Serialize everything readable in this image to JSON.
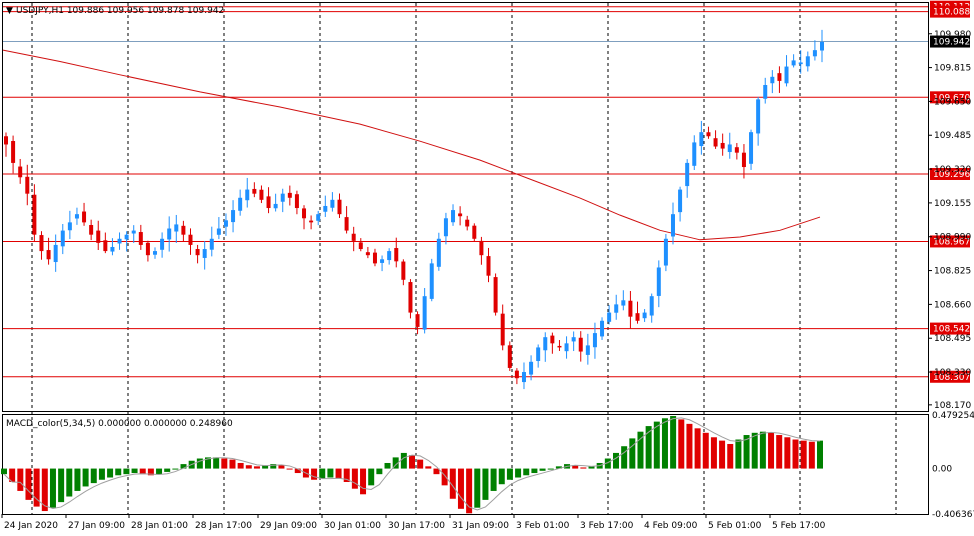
{
  "header": {
    "symbol_line": "USDJPY,H1  109.886 109.956 109.878 109.942"
  },
  "macd_header": {
    "text": "MACD_color(5,34,5) 0.000000 0.000000 0.248960"
  },
  "colors": {
    "bull": "#1e90ff",
    "bear": "#e00000",
    "ma": "#d01010",
    "level_line": "#e00000",
    "level_tag": "#e00000",
    "bid_tag": "#000000",
    "hist_up": "#008000",
    "hist_down": "#e00000",
    "signal": "#a0a0a0"
  },
  "chart_data": [
    {
      "type": "candlestick",
      "ylim": [
        108.14,
        110.13
      ],
      "price_axis_ticks": [
        "109.980",
        "109.815",
        "109.650",
        "109.485",
        "109.320",
        "109.155",
        "108.990",
        "108.825",
        "108.660",
        "108.495",
        "108.330",
        "108.170"
      ],
      "time_axis_labels": [
        "24 Jan 2020",
        "27 Jan 09:00",
        "28 Jan 01:00",
        "28 Jan 17:00",
        "29 Jan 09:00",
        "30 Jan 01:00",
        "30 Jan 17:00",
        "31 Jan 09:00",
        "3 Feb 01:00",
        "3 Feb 17:00",
        "4 Feb 09:00",
        "5 Feb 01:00",
        "5 Feb 17:00"
      ],
      "horizontal_levels": [
        110.112,
        110.088,
        109.67,
        109.296,
        108.967,
        108.542,
        108.307
      ],
      "level_tags": [
        "110.112",
        "110.088",
        "109.670",
        "109.296",
        "108.967",
        "108.542",
        "108.307"
      ],
      "bid": {
        "value": 109.942,
        "label": "109.942"
      },
      "close_path": [
        109.44,
        109.35,
        109.28,
        109.2,
        109.0,
        108.92,
        108.88,
        108.95,
        109.02,
        109.06,
        109.1,
        109.06,
        109.0,
        108.96,
        108.92,
        108.94,
        108.98,
        109.0,
        109.02,
        108.95,
        108.9,
        108.92,
        108.98,
        109.03,
        109.05,
        109.0,
        108.95,
        108.9,
        108.93,
        108.98,
        109.03,
        109.07,
        109.12,
        109.18,
        109.22,
        109.2,
        109.17,
        109.13,
        109.15,
        109.2,
        109.18,
        109.13,
        109.08,
        109.06,
        109.1,
        109.14,
        109.17,
        109.1,
        109.02,
        108.97,
        108.93,
        108.9,
        108.86,
        108.88,
        108.92,
        108.87,
        108.78,
        108.62,
        108.55,
        108.7,
        108.86,
        108.98,
        109.08,
        109.12,
        109.09,
        109.04,
        108.98,
        108.9,
        108.8,
        108.62,
        108.46,
        108.35,
        108.3,
        108.33,
        108.38,
        108.45,
        108.5,
        108.47,
        108.45,
        108.47,
        108.5,
        108.43,
        108.46,
        108.52,
        108.58,
        108.62,
        108.66,
        108.68,
        108.6,
        108.58,
        108.62,
        108.7,
        108.84,
        108.98,
        109.1,
        109.22,
        109.35,
        109.45,
        109.5,
        109.48,
        109.43,
        109.42,
        109.44,
        109.4,
        109.33,
        109.5,
        109.66,
        109.73,
        109.77,
        109.75,
        109.82,
        109.85,
        109.84,
        109.87,
        109.9,
        109.94
      ],
      "moving_average": {
        "start": 109.9,
        "mid_low": 108.975,
        "end": 109.0
      },
      "macd": {
        "ylim": [
          -0.406367,
          0.479254
        ],
        "axis_ticks": [
          "0.479254",
          "0.00",
          "-0.406367"
        ],
        "histogram": [
          -0.05,
          -0.12,
          -0.2,
          -0.28,
          -0.34,
          -0.38,
          -0.35,
          -0.3,
          -0.25,
          -0.2,
          -0.16,
          -0.13,
          -0.1,
          -0.08,
          -0.06,
          -0.05,
          -0.04,
          -0.05,
          -0.06,
          -0.05,
          -0.03,
          0.0,
          0.04,
          0.07,
          0.09,
          0.1,
          0.1,
          0.09,
          0.08,
          0.05,
          0.03,
          0.02,
          0.03,
          0.04,
          0.03,
          0.0,
          -0.04,
          -0.08,
          -0.1,
          -0.09,
          -0.08,
          -0.09,
          -0.12,
          -0.18,
          -0.23,
          -0.15,
          -0.05,
          0.05,
          0.1,
          0.14,
          0.12,
          0.08,
          0.02,
          -0.05,
          -0.15,
          -0.27,
          -0.36,
          -0.4,
          -0.35,
          -0.28,
          -0.2,
          -0.14,
          -0.1,
          -0.08,
          -0.06,
          -0.04,
          -0.02,
          0.0,
          0.02,
          0.04,
          0.03,
          0.01,
          0.02,
          0.05,
          0.09,
          0.14,
          0.2,
          0.27,
          0.33,
          0.38,
          0.42,
          0.45,
          0.47,
          0.44,
          0.4,
          0.36,
          0.32,
          0.28,
          0.25,
          0.22,
          0.26,
          0.3,
          0.32,
          0.33,
          0.32,
          0.3,
          0.28,
          0.26,
          0.25,
          0.24,
          0.25
        ]
      }
    }
  ]
}
